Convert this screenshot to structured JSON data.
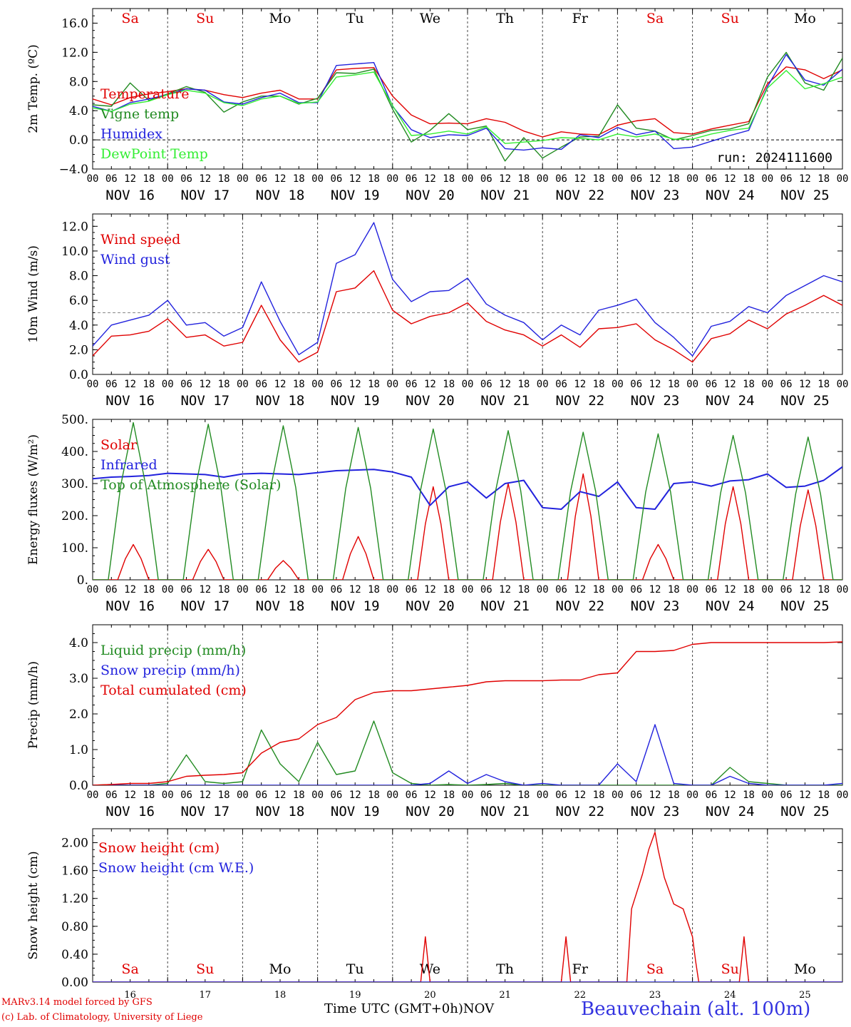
{
  "station": "Beauvechain (alt. 100m)",
  "credits": {
    "line1": "MARv3.14 model forced by GFS",
    "line2": "(c) Lab. of Climatology, University of Liege"
  },
  "time_axis": {
    "label": "Time UTC (GMT+0h)",
    "month": "NOV",
    "hours": [
      "00",
      "06",
      "12",
      "18"
    ],
    "day_labels": [
      "NOV 16",
      "NOV 17",
      "NOV 18",
      "NOV 19",
      "NOV 20",
      "NOV 21",
      "NOV 22",
      "NOV 23",
      "NOV 24",
      "NOV 25"
    ],
    "day_numbers": [
      "16",
      "17",
      "18",
      "19",
      "20",
      "21",
      "22",
      "23",
      "24",
      "25"
    ],
    "weekdays": [
      "Sa",
      "Su",
      "Mo",
      "Tu",
      "We",
      "Th",
      "Fr",
      "Sa",
      "Su",
      "Mo"
    ],
    "weekend_color": "#e00000"
  },
  "colors": {
    "red": "#e00000",
    "green": "#228b22",
    "blue": "#2222dd",
    "lightgreen": "#33ee33"
  },
  "chart_data": [
    {
      "id": "temp",
      "type": "line",
      "ylabel": "2m Temp. (ºC)",
      "ylim": [
        -4,
        18
      ],
      "yticks": [
        -4,
        0,
        4,
        8,
        12,
        16
      ],
      "ytick_labels": [
        "−4.0",
        "0.0",
        "4.0",
        "8.0",
        "12.0",
        "16.0"
      ],
      "ref_line": 0,
      "annotation": "run: 2024111600",
      "show_weekdays": "top",
      "x": [
        0,
        6,
        12,
        18,
        24,
        30,
        36,
        42,
        48,
        54,
        60,
        66,
        72,
        78,
        84,
        90,
        96,
        102,
        108,
        114,
        120,
        126,
        132,
        138,
        144,
        150,
        156,
        162,
        168,
        174,
        180,
        186,
        192,
        198,
        204,
        210,
        216,
        222,
        228,
        234,
        240
      ],
      "series": [
        {
          "name": "Temperature",
          "color": "red",
          "values": [
            5.6,
            4.8,
            5.8,
            6.3,
            6.6,
            7.0,
            6.8,
            6.2,
            5.8,
            6.4,
            6.8,
            5.6,
            5.6,
            9.6,
            9.8,
            9.9,
            6.0,
            3.4,
            2.2,
            2.3,
            2.2,
            2.9,
            2.4,
            1.2,
            0.4,
            1.1,
            0.8,
            0.7,
            2.0,
            2.6,
            2.9,
            1.0,
            0.8,
            1.5,
            2.0,
            2.5,
            7.7,
            10.0,
            9.6,
            8.4,
            9.6
          ]
        },
        {
          "name": "Vigne temp",
          "color": "green",
          "values": [
            4.8,
            4.6,
            7.8,
            5.4,
            6.3,
            7.3,
            6.5,
            3.8,
            5.2,
            6.0,
            6.0,
            4.9,
            5.7,
            9.2,
            9.1,
            9.7,
            4.2,
            -0.3,
            1.3,
            3.6,
            1.4,
            1.9,
            -2.9,
            0.3,
            -2.5,
            -1.0,
            0.4,
            0.5,
            4.8,
            1.6,
            1.2,
            0.0,
            0.6,
            1.3,
            1.5,
            2.2,
            8.6,
            12.0,
            7.8,
            6.8,
            11.2
          ]
        },
        {
          "name": "Humidex",
          "color": "blue",
          "values": [
            4.6,
            3.9,
            5.1,
            5.6,
            6.2,
            7.0,
            6.8,
            5.2,
            4.9,
            5.8,
            6.4,
            5.1,
            5.1,
            10.2,
            10.4,
            10.6,
            4.6,
            1.4,
            0.3,
            0.7,
            0.6,
            1.6,
            -1.2,
            -1.4,
            -1.1,
            -1.3,
            0.7,
            0.3,
            1.7,
            0.7,
            1.2,
            -1.2,
            -1.0,
            -0.2,
            0.6,
            1.3,
            7.3,
            11.7,
            8.2,
            7.5,
            9.7
          ]
        },
        {
          "name": "DewPoint Temp",
          "color": "lightgreen",
          "values": [
            4.4,
            3.9,
            4.9,
            5.3,
            6.2,
            6.8,
            6.4,
            5.1,
            4.7,
            5.6,
            6.0,
            5.0,
            5.2,
            8.6,
            8.9,
            9.3,
            4.7,
            0.6,
            0.8,
            1.2,
            0.8,
            1.8,
            -0.5,
            -0.3,
            -0.1,
            0.3,
            0.2,
            0.0,
            0.8,
            0.4,
            0.8,
            0.1,
            0.1,
            0.8,
            1.3,
            1.6,
            7.1,
            9.5,
            7.0,
            7.7,
            8.6
          ]
        }
      ]
    },
    {
      "id": "wind",
      "type": "line",
      "ylabel": "10m Wind (m/s)",
      "ylim": [
        0,
        13
      ],
      "yticks": [
        0,
        2,
        4,
        6,
        8,
        10,
        12
      ],
      "ytick_labels": [
        "0.0",
        "2.0",
        "4.0",
        "6.0",
        "8.0",
        "10.0",
        "12.0"
      ],
      "ref_line": 5,
      "x": [
        0,
        6,
        12,
        18,
        24,
        30,
        36,
        42,
        48,
        54,
        60,
        66,
        72,
        78,
        84,
        90,
        96,
        102,
        108,
        114,
        120,
        126,
        132,
        138,
        144,
        150,
        156,
        162,
        168,
        174,
        180,
        186,
        192,
        198,
        204,
        210,
        216,
        222,
        228,
        234,
        240
      ],
      "series": [
        {
          "name": "Wind speed",
          "color": "red",
          "values": [
            1.5,
            3.1,
            3.2,
            3.5,
            4.5,
            3.0,
            3.2,
            2.3,
            2.6,
            5.6,
            2.8,
            1.0,
            1.8,
            6.7,
            7.0,
            8.4,
            5.2,
            4.1,
            4.7,
            5.0,
            5.8,
            4.3,
            3.6,
            3.2,
            2.3,
            3.2,
            2.2,
            3.7,
            3.8,
            4.1,
            2.8,
            2.0,
            1.0,
            2.9,
            3.3,
            4.4,
            3.7,
            4.9,
            5.6,
            6.4,
            5.6
          ]
        },
        {
          "name": "Wind gust",
          "color": "blue",
          "values": [
            2.3,
            4.0,
            4.4,
            4.8,
            6.0,
            4.0,
            4.2,
            3.1,
            3.8,
            7.5,
            4.3,
            1.6,
            2.6,
            9.0,
            9.7,
            12.3,
            7.7,
            5.9,
            6.7,
            6.8,
            7.8,
            5.7,
            4.8,
            4.2,
            2.8,
            4.0,
            3.2,
            5.2,
            5.6,
            6.1,
            4.2,
            3.0,
            1.5,
            3.9,
            4.3,
            5.5,
            5.0,
            6.4,
            7.2,
            8.0,
            7.5
          ]
        }
      ]
    },
    {
      "id": "energy",
      "type": "line",
      "ylabel": "Energy fluxes (W/m²)",
      "ylim": [
        0,
        500
      ],
      "yticks": [
        0,
        100,
        200,
        300,
        400,
        500
      ],
      "ytick_labels": [
        "0.",
        "100.",
        "200.",
        "300.",
        "400.",
        "500."
      ],
      "daily_solar_peaks": {
        "top_of_atmosphere": [
          490,
          485,
          480,
          475,
          470,
          465,
          460,
          455,
          450,
          445
        ],
        "solar": [
          110,
          95,
          60,
          135,
          290,
          300,
          330,
          110,
          290,
          280
        ]
      },
      "series": [
        {
          "name": "Solar",
          "color": "red"
        },
        {
          "name": "Infrared",
          "color": "blue",
          "x": [
            0,
            6,
            12,
            18,
            24,
            30,
            36,
            42,
            48,
            54,
            60,
            66,
            72,
            78,
            84,
            90,
            96,
            102,
            108,
            114,
            120,
            126,
            132,
            138,
            144,
            150,
            156,
            162,
            168,
            174,
            180,
            186,
            192,
            198,
            204,
            210,
            216,
            222,
            228,
            234,
            240
          ],
          "values": [
            315,
            320,
            322,
            325,
            332,
            330,
            328,
            320,
            330,
            332,
            330,
            328,
            334,
            340,
            342,
            344,
            336,
            320,
            232,
            290,
            305,
            255,
            300,
            310,
            225,
            220,
            275,
            260,
            305,
            225,
            220,
            300,
            305,
            292,
            308,
            312,
            330,
            288,
            292,
            310,
            352
          ]
        },
        {
          "name": "Top of Atmosphere (Solar)",
          "color": "green"
        }
      ]
    },
    {
      "id": "precip",
      "type": "line",
      "ylabel": "Precip (mm/h)",
      "ylim": [
        0,
        4.5
      ],
      "yticks": [
        0,
        1,
        2,
        3,
        4
      ],
      "ytick_labels": [
        "0.0",
        "1.0",
        "2.0",
        "3.0",
        "4.0"
      ],
      "x": [
        0,
        6,
        12,
        18,
        24,
        30,
        36,
        42,
        48,
        54,
        60,
        66,
        72,
        78,
        84,
        90,
        96,
        102,
        108,
        114,
        120,
        126,
        132,
        138,
        144,
        150,
        156,
        162,
        168,
        174,
        180,
        186,
        192,
        198,
        204,
        210,
        216,
        222,
        228,
        234,
        240
      ],
      "series": [
        {
          "name": "Liquid precip (mm/h)",
          "color": "green",
          "values": [
            0,
            0.02,
            0,
            0,
            0.05,
            0.85,
            0.1,
            0.05,
            0.1,
            1.55,
            0.6,
            0.1,
            1.2,
            0.3,
            0.4,
            1.8,
            0.35,
            0.05,
            0,
            0.02,
            0,
            0.02,
            0.05,
            0,
            0,
            0,
            0,
            0,
            0,
            0,
            0,
            0,
            0,
            0,
            0.5,
            0.1,
            0.05,
            0,
            0,
            0,
            0
          ]
        },
        {
          "name": "Snow precip (mm/h)",
          "color": "blue",
          "values": [
            0,
            0,
            0,
            0,
            0,
            0,
            0,
            0,
            0,
            0,
            0,
            0,
            0,
            0,
            0,
            0,
            0,
            0,
            0.05,
            0.4,
            0.05,
            0.3,
            0.1,
            0,
            0.05,
            0,
            0,
            0,
            0.6,
            0.1,
            1.7,
            0.05,
            0,
            0,
            0.25,
            0.05,
            0,
            0,
            0,
            0,
            0.05
          ]
        },
        {
          "name": "Total cumulated (cm)",
          "color": "red",
          "values": [
            0,
            0.02,
            0.05,
            0.05,
            0.1,
            0.25,
            0.28,
            0.3,
            0.35,
            0.9,
            1.2,
            1.3,
            1.7,
            1.9,
            2.4,
            2.6,
            2.65,
            2.65,
            2.7,
            2.75,
            2.8,
            2.9,
            2.93,
            2.93,
            2.93,
            2.95,
            2.95,
            3.1,
            3.15,
            3.75,
            3.75,
            3.78,
            3.95,
            4.0,
            4.0,
            4.0,
            4.0,
            4.0,
            4.0,
            4.0,
            4.02
          ]
        }
      ]
    },
    {
      "id": "snow",
      "type": "line",
      "ylabel": "Snow height (cm)",
      "ylim": [
        0,
        2.2
      ],
      "yticks": [
        0,
        0.4,
        0.8,
        1.2,
        1.6,
        2.0
      ],
      "ytick_labels": [
        "0.00",
        "0.40",
        "0.80",
        "1.20",
        "1.60",
        "2.00"
      ],
      "show_weekdays": "bottom",
      "series": [
        {
          "name": "Snow height (cm)",
          "color": "red",
          "x": [
            0,
            105,
            106.5,
            108,
            150,
            151.5,
            153,
            171,
            172.5,
            176,
            178,
            180,
            181,
            183,
            186,
            189,
            192,
            193,
            194,
            207,
            208.5,
            210,
            240
          ],
          "values": [
            0,
            0,
            0.65,
            0,
            0,
            0.65,
            0,
            0,
            1.05,
            1.55,
            1.9,
            2.15,
            1.9,
            1.5,
            1.12,
            1.05,
            0.65,
            0.3,
            0,
            0,
            0.65,
            0,
            0
          ]
        },
        {
          "name": "Snow height (cm W.E.)",
          "color": "blue",
          "x": [
            0,
            240
          ],
          "values": [
            0,
            0
          ]
        }
      ]
    }
  ]
}
